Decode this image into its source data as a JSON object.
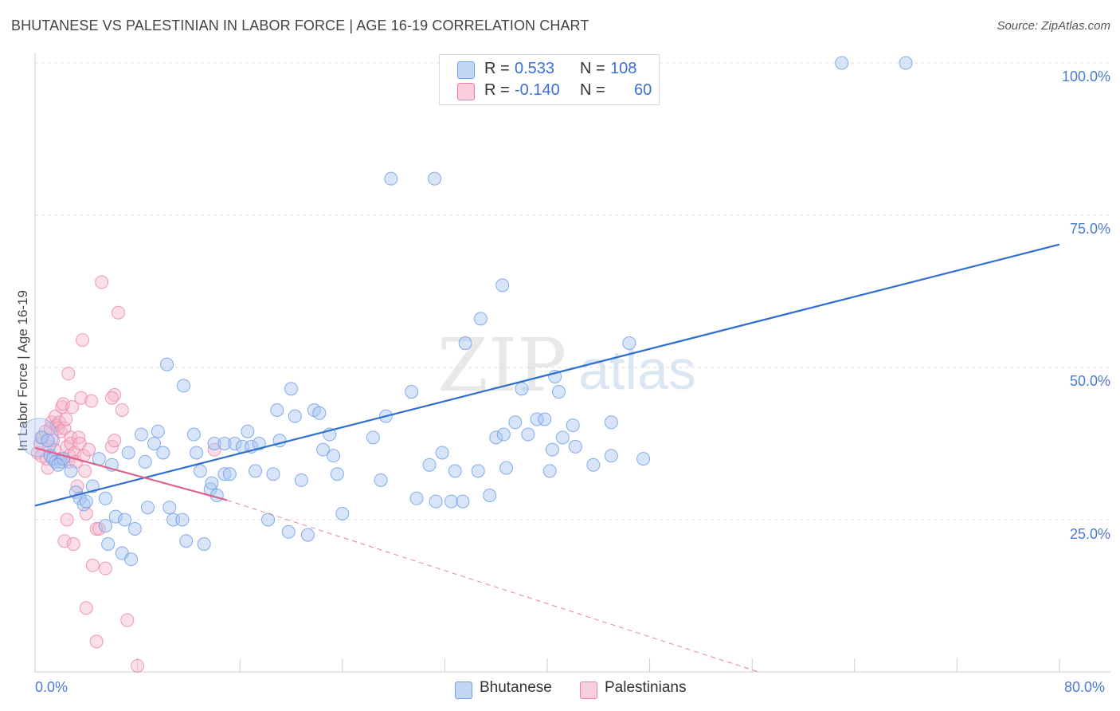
{
  "title": "BHUTANESE VS PALESTINIAN IN LABOR FORCE | AGE 16-19 CORRELATION CHART",
  "source": "Source: ZipAtlas.com",
  "watermark": {
    "zip": "ZIP",
    "atlas": "atlas"
  },
  "colors": {
    "blue": "#6f9fe6",
    "blue_fill": "#a9c6f1",
    "blue_line": "#2f6fd0",
    "pink": "#ee7fa6",
    "pink_fill": "#f5b8cd",
    "pink_line": "#e0608e",
    "grid": "#dddddd",
    "tick_text": "#4a7bd0"
  },
  "legend": {
    "rows": [
      {
        "series": "Bhutanese",
        "r_label": "R =",
        "r_value": "0.533",
        "n_label": "N =",
        "n_value": "108"
      },
      {
        "series": "Palestinians",
        "r_label": "R =",
        "r_value": "-0.140",
        "n_label": "N =",
        "n_value": "60"
      }
    ]
  },
  "bottom_legend": [
    "Bhutanese",
    "Palestinians"
  ],
  "chart_data": {
    "type": "scatter",
    "title": "BHUTANESE VS PALESTINIAN IN LABOR FORCE | AGE 16-19 CORRELATION CHART",
    "xlabel": "",
    "ylabel": "In Labor Force | Age 16-19",
    "xlim": [
      0,
      80
    ],
    "ylim": [
      0,
      100
    ],
    "x_tick_labels": [
      "0.0%",
      "80.0%"
    ],
    "y_tick_labels": [
      "100.0%",
      "75.0%",
      "50.0%",
      "25.0%"
    ],
    "y_tick_values": [
      100,
      75,
      50,
      25
    ],
    "grid": true,
    "legend_position": "top-center",
    "series": [
      {
        "name": "Bhutanese",
        "r": 0.533,
        "n": 108,
        "trendline": {
          "x": [
            0,
            80
          ],
          "y": [
            27.3,
            70.2
          ]
        },
        "points": [
          [
            0.5,
            38.5
          ],
          [
            1.0,
            38.0
          ],
          [
            1.2,
            35.5
          ],
          [
            1.4,
            35.0
          ],
          [
            1.6,
            34.5
          ],
          [
            2.0,
            34.5
          ],
          [
            2.2,
            35.0
          ],
          [
            2.8,
            33.0
          ],
          [
            3.2,
            29.5
          ],
          [
            3.5,
            28.5
          ],
          [
            3.8,
            27.5
          ],
          [
            4.0,
            28.0
          ],
          [
            4.5,
            30.5
          ],
          [
            5.0,
            35.0
          ],
          [
            5.5,
            28.5
          ],
          [
            5.5,
            24.0
          ],
          [
            5.7,
            21.0
          ],
          [
            6.0,
            34.0
          ],
          [
            6.3,
            25.5
          ],
          [
            6.8,
            19.5
          ],
          [
            7.0,
            25.0
          ],
          [
            7.3,
            36.0
          ],
          [
            7.5,
            18.5
          ],
          [
            7.8,
            23.5
          ],
          [
            8.3,
            39.0
          ],
          [
            8.6,
            34.5
          ],
          [
            8.8,
            27.0
          ],
          [
            9.3,
            37.5
          ],
          [
            9.6,
            39.5
          ],
          [
            10.0,
            36.0
          ],
          [
            10.3,
            50.5
          ],
          [
            10.5,
            27.0
          ],
          [
            10.8,
            25.0
          ],
          [
            11.5,
            25.0
          ],
          [
            11.6,
            47.0
          ],
          [
            11.8,
            21.5
          ],
          [
            12.4,
            39.0
          ],
          [
            12.6,
            36.0
          ],
          [
            12.9,
            33.0
          ],
          [
            13.2,
            21.0
          ],
          [
            13.7,
            30.0
          ],
          [
            13.8,
            31.0
          ],
          [
            14.0,
            37.5
          ],
          [
            14.2,
            29.0
          ],
          [
            14.8,
            37.5
          ],
          [
            14.8,
            32.5
          ],
          [
            15.2,
            32.5
          ],
          [
            15.6,
            37.5
          ],
          [
            16.2,
            37.0
          ],
          [
            16.6,
            39.5
          ],
          [
            16.9,
            37.0
          ],
          [
            17.2,
            33.0
          ],
          [
            17.5,
            37.5
          ],
          [
            18.2,
            25.0
          ],
          [
            18.6,
            32.5
          ],
          [
            18.9,
            43.0
          ],
          [
            19.1,
            38.0
          ],
          [
            19.8,
            23.0
          ],
          [
            20.0,
            46.5
          ],
          [
            20.3,
            42.0
          ],
          [
            20.8,
            31.5
          ],
          [
            21.3,
            22.5
          ],
          [
            21.8,
            43.0
          ],
          [
            22.2,
            42.5
          ],
          [
            22.5,
            36.5
          ],
          [
            23.0,
            39.0
          ],
          [
            23.3,
            35.5
          ],
          [
            23.6,
            32.5
          ],
          [
            24.0,
            26.0
          ],
          [
            26.4,
            38.5
          ],
          [
            27.0,
            31.5
          ],
          [
            27.4,
            42.0
          ],
          [
            27.8,
            81.0
          ],
          [
            29.4,
            46.0
          ],
          [
            29.8,
            28.5
          ],
          [
            30.8,
            34.0
          ],
          [
            31.3,
            28.0
          ],
          [
            31.8,
            36.0
          ],
          [
            31.2,
            81.0
          ],
          [
            32.5,
            28.0
          ],
          [
            32.8,
            33.0
          ],
          [
            33.6,
            54.0
          ],
          [
            33.4,
            28.0
          ],
          [
            34.8,
            58.0
          ],
          [
            34.6,
            33.0
          ],
          [
            35.5,
            29.0
          ],
          [
            36.0,
            38.5
          ],
          [
            36.5,
            63.5
          ],
          [
            36.6,
            39.0
          ],
          [
            36.8,
            33.5
          ],
          [
            37.5,
            41.0
          ],
          [
            38.0,
            46.5
          ],
          [
            38.5,
            39.0
          ],
          [
            39.2,
            41.5
          ],
          [
            39.8,
            41.5
          ],
          [
            40.2,
            33.0
          ],
          [
            40.4,
            36.5
          ],
          [
            40.6,
            48.5
          ],
          [
            40.9,
            46.0
          ],
          [
            41.2,
            38.5
          ],
          [
            42.0,
            40.5
          ],
          [
            42.2,
            37.0
          ],
          [
            43.6,
            34.0
          ],
          [
            45.0,
            35.5
          ],
          [
            45.0,
            41.0
          ],
          [
            46.4,
            54.0
          ],
          [
            47.5,
            35.0
          ],
          [
            63.0,
            100.0
          ],
          [
            68.0,
            100.0
          ],
          [
            1.8,
            34.0
          ]
        ]
      },
      {
        "name": "Palestinians",
        "r": -0.14,
        "n": 60,
        "trendline": {
          "x": [
            0,
            15
          ],
          "y": [
            36.8,
            28.2
          ]
        },
        "trendline_dashed": {
          "x": [
            15,
            56.5
          ],
          "y": [
            28.2,
            0.0
          ]
        },
        "points": [
          [
            0.2,
            36.0
          ],
          [
            0.4,
            37.5
          ],
          [
            0.5,
            35.5
          ],
          [
            0.6,
            38.5
          ],
          [
            0.8,
            39.5
          ],
          [
            0.9,
            35.0
          ],
          [
            1.0,
            33.5
          ],
          [
            1.1,
            37.0
          ],
          [
            1.2,
            40.0
          ],
          [
            1.3,
            41.0
          ],
          [
            1.4,
            38.0
          ],
          [
            1.5,
            36.5
          ],
          [
            1.6,
            42.0
          ],
          [
            1.7,
            40.5
          ],
          [
            1.8,
            40.0
          ],
          [
            1.9,
            41.0
          ],
          [
            2.0,
            39.5
          ],
          [
            2.0,
            35.0
          ],
          [
            2.1,
            43.5
          ],
          [
            2.2,
            44.0
          ],
          [
            2.3,
            40.0
          ],
          [
            2.3,
            21.5
          ],
          [
            2.4,
            41.5
          ],
          [
            2.5,
            37.0
          ],
          [
            2.5,
            25.0
          ],
          [
            2.6,
            34.5
          ],
          [
            2.6,
            49.0
          ],
          [
            2.7,
            35.5
          ],
          [
            2.8,
            38.5
          ],
          [
            2.8,
            37.5
          ],
          [
            2.9,
            43.5
          ],
          [
            3.0,
            21.0
          ],
          [
            3.1,
            36.0
          ],
          [
            3.2,
            34.5
          ],
          [
            3.3,
            30.5
          ],
          [
            3.4,
            38.5
          ],
          [
            3.5,
            37.5
          ],
          [
            3.6,
            45.0
          ],
          [
            3.7,
            54.5
          ],
          [
            3.8,
            35.5
          ],
          [
            3.9,
            33.0
          ],
          [
            4.0,
            26.0
          ],
          [
            4.0,
            10.5
          ],
          [
            4.2,
            36.5
          ],
          [
            4.4,
            44.5
          ],
          [
            4.5,
            17.5
          ],
          [
            4.8,
            5.0
          ],
          [
            4.8,
            23.5
          ],
          [
            5.0,
            23.5
          ],
          [
            5.2,
            64.0
          ],
          [
            5.5,
            17.0
          ],
          [
            6.0,
            37.0
          ],
          [
            6.2,
            38.0
          ],
          [
            6.2,
            45.5
          ],
          [
            6.5,
            59.0
          ],
          [
            6.8,
            43.0
          ],
          [
            7.2,
            8.5
          ],
          [
            8.0,
            1.0
          ],
          [
            14.0,
            36.5
          ],
          [
            6.0,
            45.0
          ]
        ]
      }
    ]
  }
}
